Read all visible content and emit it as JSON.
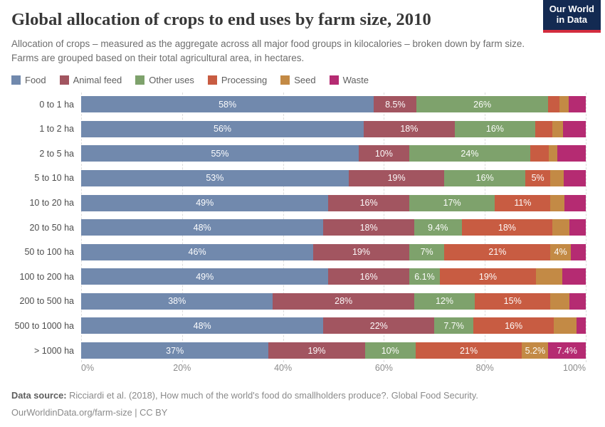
{
  "header": {
    "title": "Global allocation of crops to end uses by farm size, 2010",
    "subtitle": "Allocation of crops – measured as the aggregate across all major food groups in kilocalories – broken down by farm size. Farms are grouped based on their total agricultural area, in hectares.",
    "logo": {
      "line1": "Our World",
      "line2": "in Data"
    }
  },
  "chart_data": {
    "type": "bar",
    "stacked": true,
    "orientation": "horizontal",
    "title": "Global allocation of crops to end uses by farm size, 2010",
    "value_unit": "%",
    "xlim": [
      0,
      100
    ],
    "grid": "vertical-dashed",
    "legend_position": "top",
    "categories": [
      "0 to 1 ha",
      "1 to 2 ha",
      "2 to 5 ha",
      "5 to 10 ha",
      "10 to 20 ha",
      "20 to 50 ha",
      "50 to 100 ha",
      "100 to 200 ha",
      "200 to 500 ha",
      "500 to 1000 ha",
      "> 1000 ha"
    ],
    "series": [
      {
        "id": "food",
        "name": "Food",
        "color": "#7189ad",
        "values": [
          58,
          56,
          55,
          53,
          49,
          48,
          46,
          49,
          38,
          48,
          37
        ],
        "labels": [
          "58%",
          "56%",
          "55%",
          "53%",
          "49%",
          "48%",
          "46%",
          "49%",
          "38%",
          "48%",
          "37%"
        ]
      },
      {
        "id": "animal-feed",
        "name": "Animal feed",
        "color": "#a25560",
        "values": [
          8.5,
          18,
          10,
          19,
          16,
          18,
          19,
          16,
          28,
          22,
          19
        ],
        "labels": [
          "8.5%",
          "18%",
          "10%",
          "19%",
          "16%",
          "18%",
          "19%",
          "16%",
          "28%",
          "22%",
          "19%"
        ]
      },
      {
        "id": "other-uses",
        "name": "Other uses",
        "color": "#7ea26c",
        "values": [
          26,
          16,
          24,
          16,
          17,
          9.4,
          7,
          6.1,
          12,
          7.7,
          10
        ],
        "labels": [
          "26%",
          "16%",
          "24%",
          "16%",
          "17%",
          "9.4%",
          "7%",
          "6.1%",
          "12%",
          "7.7%",
          "10%"
        ]
      },
      {
        "id": "processing",
        "name": "Processing",
        "color": "#c85c42",
        "values": [
          2.3,
          3.3,
          3.6,
          5,
          11,
          18,
          21,
          19,
          15,
          16,
          21
        ],
        "labels": [
          "",
          "",
          "",
          "5%",
          "11%",
          "18%",
          "21%",
          "19%",
          "15%",
          "16%",
          "21%"
        ]
      },
      {
        "id": "seed",
        "name": "Seed",
        "color": "#c38a45",
        "values": [
          1.8,
          2.2,
          1.7,
          2.6,
          2.7,
          3.4,
          4,
          5.2,
          3.7,
          4.4,
          5.2
        ],
        "labels": [
          "",
          "",
          "",
          "",
          "",
          "",
          "4%",
          "",
          "",
          "",
          "5.2%"
        ]
      },
      {
        "id": "waste",
        "name": "Waste",
        "color": "#b52b72",
        "values": [
          3.4,
          4.5,
          5.7,
          4.4,
          4.3,
          3.2,
          3,
          4.7,
          3.3,
          1.9,
          7.4
        ],
        "labels": [
          "",
          "",
          "",
          "",
          "",
          "",
          "",
          "",
          "",
          "",
          "7.4%"
        ]
      }
    ],
    "x_ticks": [
      {
        "value": 0,
        "label": "0%"
      },
      {
        "value": 20,
        "label": "20%"
      },
      {
        "value": 40,
        "label": "40%"
      },
      {
        "value": 60,
        "label": "60%"
      },
      {
        "value": 80,
        "label": "80%"
      },
      {
        "value": 100,
        "label": "100%"
      }
    ]
  },
  "footer": {
    "source_label": "Data source:",
    "source_text": " Ricciardi et al. (2018), How much of the world's food do smallholders produce?. Global Food Security.",
    "url": "OurWorldinData.org/farm-size",
    "separator": " | ",
    "license": "CC BY"
  }
}
